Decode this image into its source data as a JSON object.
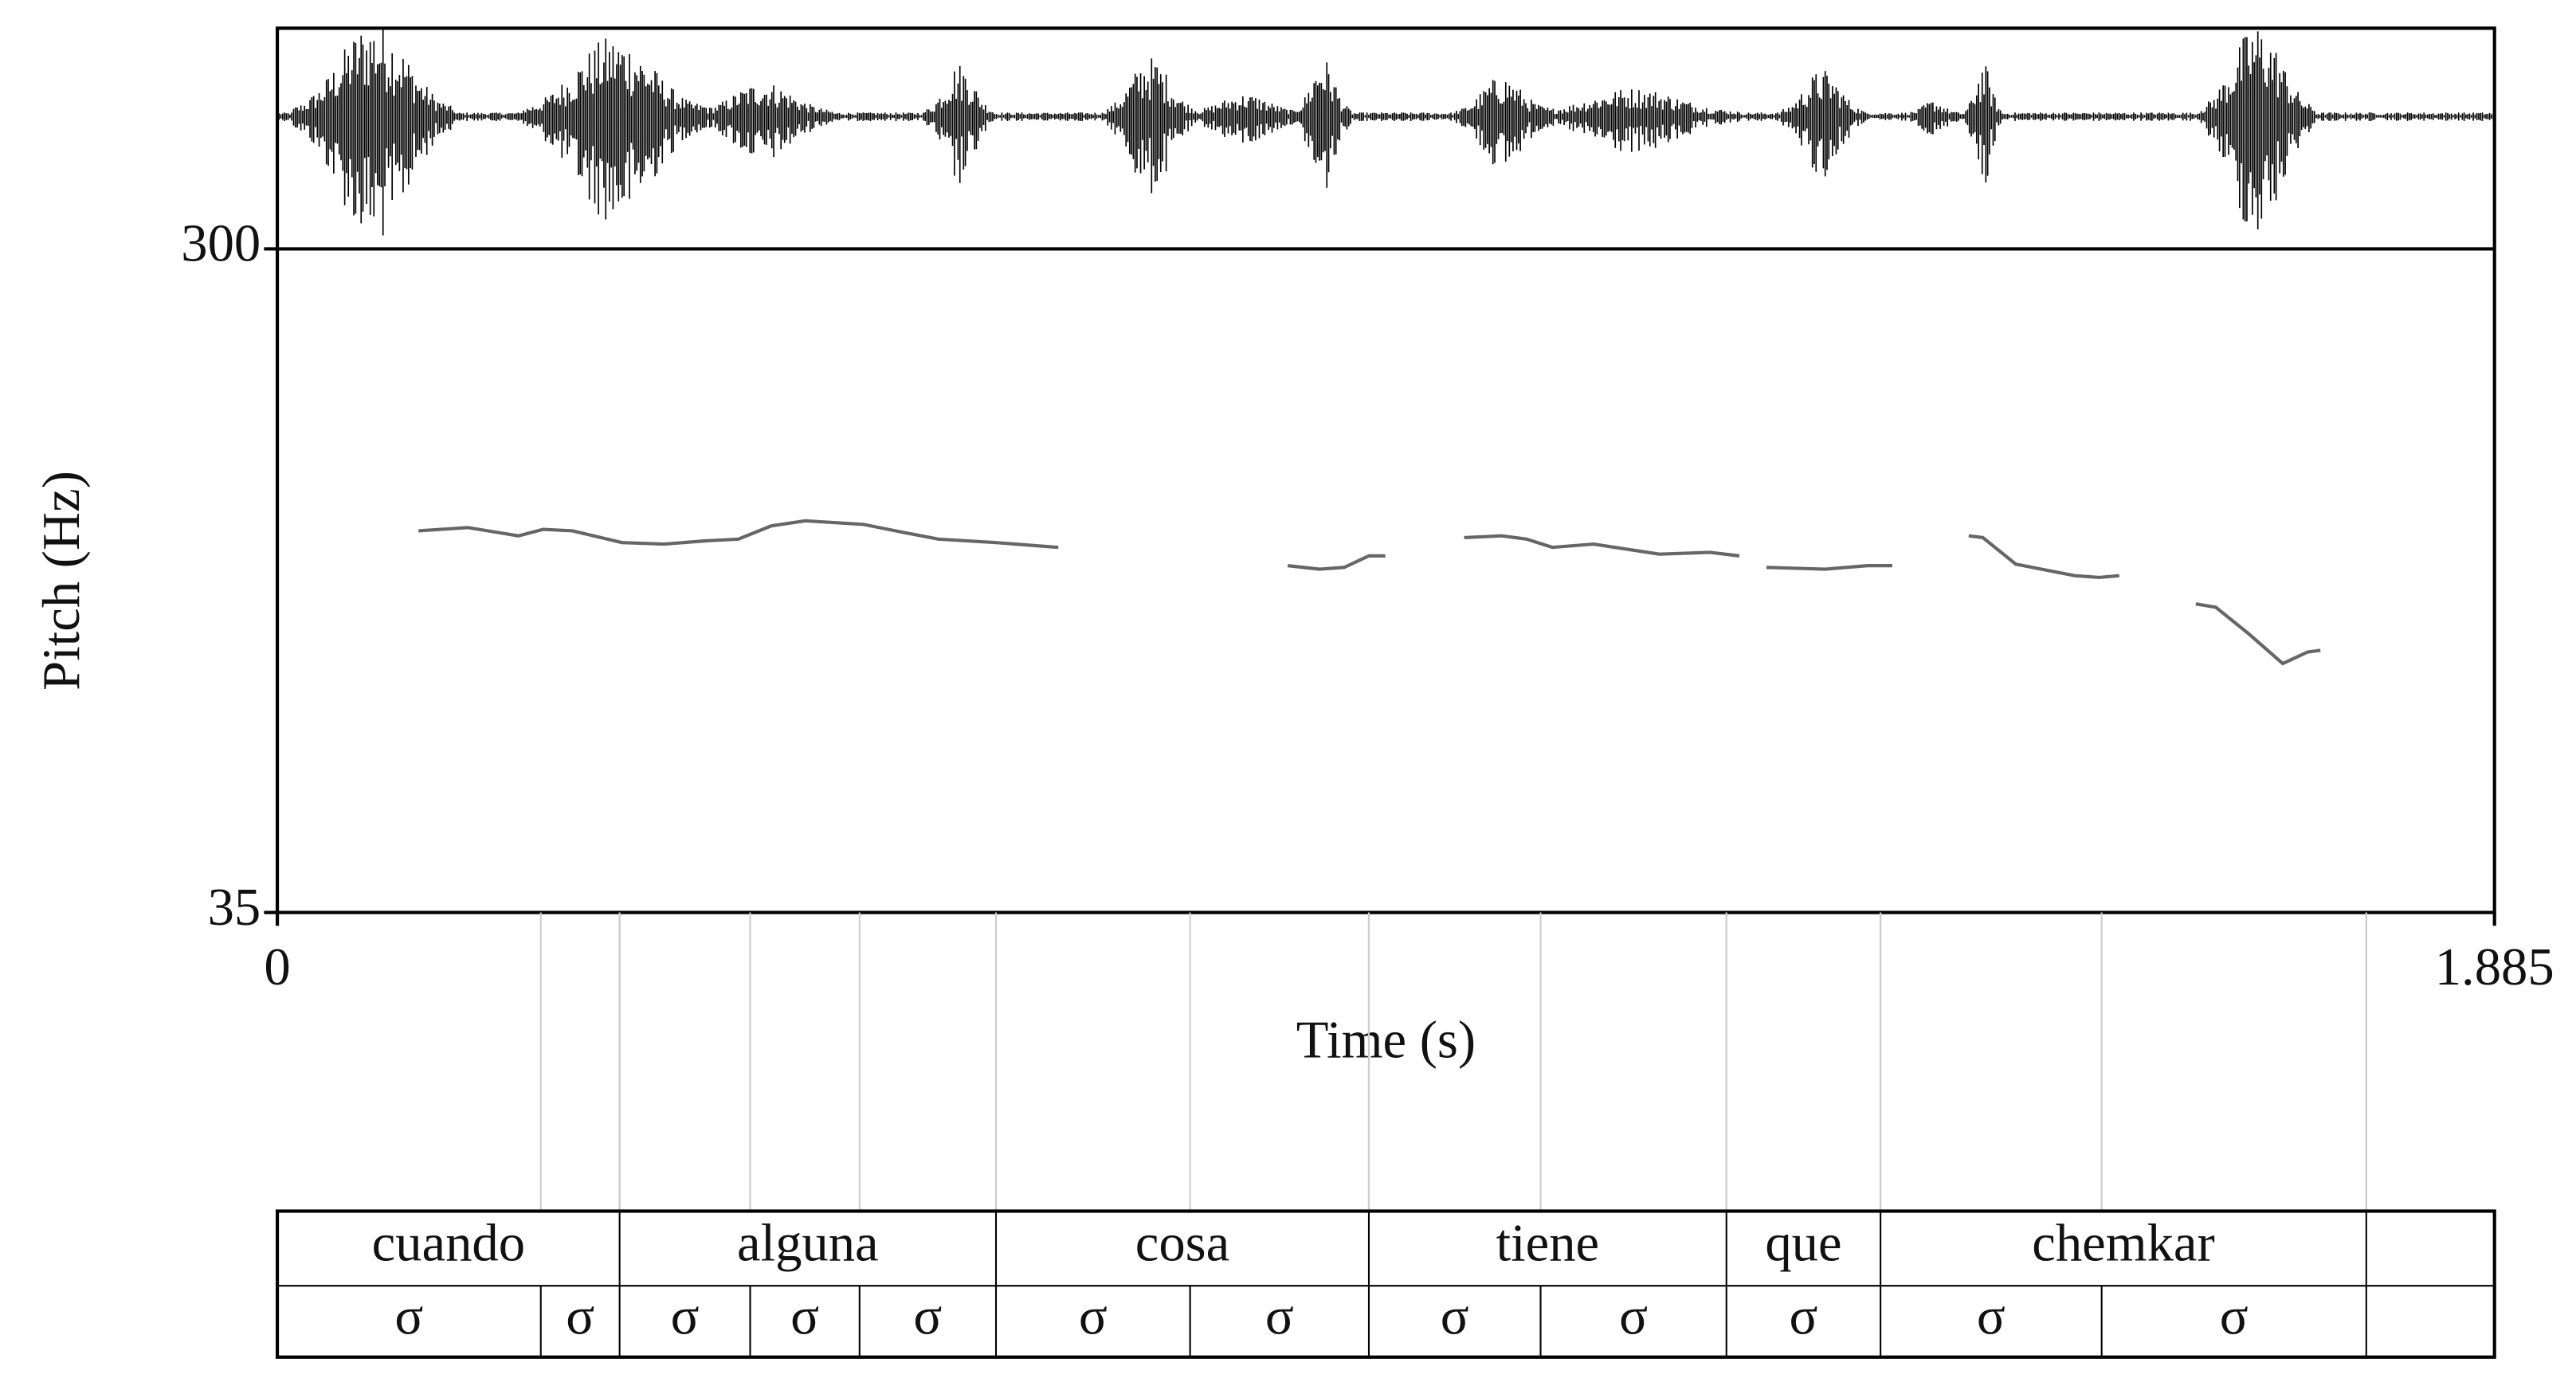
{
  "chart_data": {
    "type": "line",
    "y_label": "Pitch (Hz)",
    "x_label": "Time (s)",
    "xlim": [
      0,
      1.885
    ],
    "xticks": [
      0,
      1.885
    ],
    "ylim": [
      35,
      300
    ],
    "yticks": [
      35,
      300
    ],
    "color": "#666666",
    "x": [
      0.12,
      0.162,
      0.205,
      0.226,
      0.251,
      0.293,
      0.329,
      0.364,
      0.392,
      0.42,
      0.449,
      0.498,
      0.533,
      0.562,
      0.611,
      0.664,
      null,
      0.859,
      0.886,
      0.907,
      0.928,
      0.942,
      null,
      1.009,
      1.041,
      1.062,
      1.084,
      1.119,
      1.175,
      1.218,
      1.243,
      null,
      1.266,
      1.316,
      1.352,
      1.373,
      null,
      1.438,
      1.45,
      1.478,
      1.528,
      1.549,
      1.566,
      null,
      1.631,
      1.648,
      1.676,
      1.705,
      1.726,
      1.737
    ],
    "values": [
      187.4,
      188.7,
      185.4,
      188.0,
      187.4,
      182.7,
      182.1,
      183.4,
      184.1,
      189.4,
      191.4,
      190.0,
      186.7,
      184.1,
      182.7,
      180.8,
      null,
      173.5,
      172.1,
      172.8,
      177.4,
      177.4,
      null,
      184.7,
      185.4,
      184.1,
      180.8,
      182.1,
      178.1,
      178.8,
      177.4,
      null,
      172.8,
      172.1,
      173.5,
      173.5,
      null,
      185.4,
      184.7,
      174.1,
      169.5,
      168.8,
      169.5,
      null,
      158.2,
      156.9,
      146.3,
      134.4,
      139.0,
      139.7
    ],
    "tiers": [
      {
        "boundaries": [
          0.291,
          0.611,
          0.928,
          1.232,
          1.363,
          1.776
        ],
        "labels": [
          "cuando",
          "alguna",
          "cosa",
          "tiene",
          "que",
          "chemkar",
          null
        ]
      },
      {
        "boundaries": [
          0.224,
          0.291,
          0.402,
          0.495,
          0.611,
          0.776,
          0.928,
          1.074,
          1.232,
          1.363,
          1.551,
          1.776
        ],
        "labels": [
          "σ",
          "σ",
          "σ",
          "σ",
          "σ",
          "σ",
          "σ",
          "σ",
          "σ",
          "σ",
          "σ",
          "σ",
          null
        ]
      }
    ]
  }
}
